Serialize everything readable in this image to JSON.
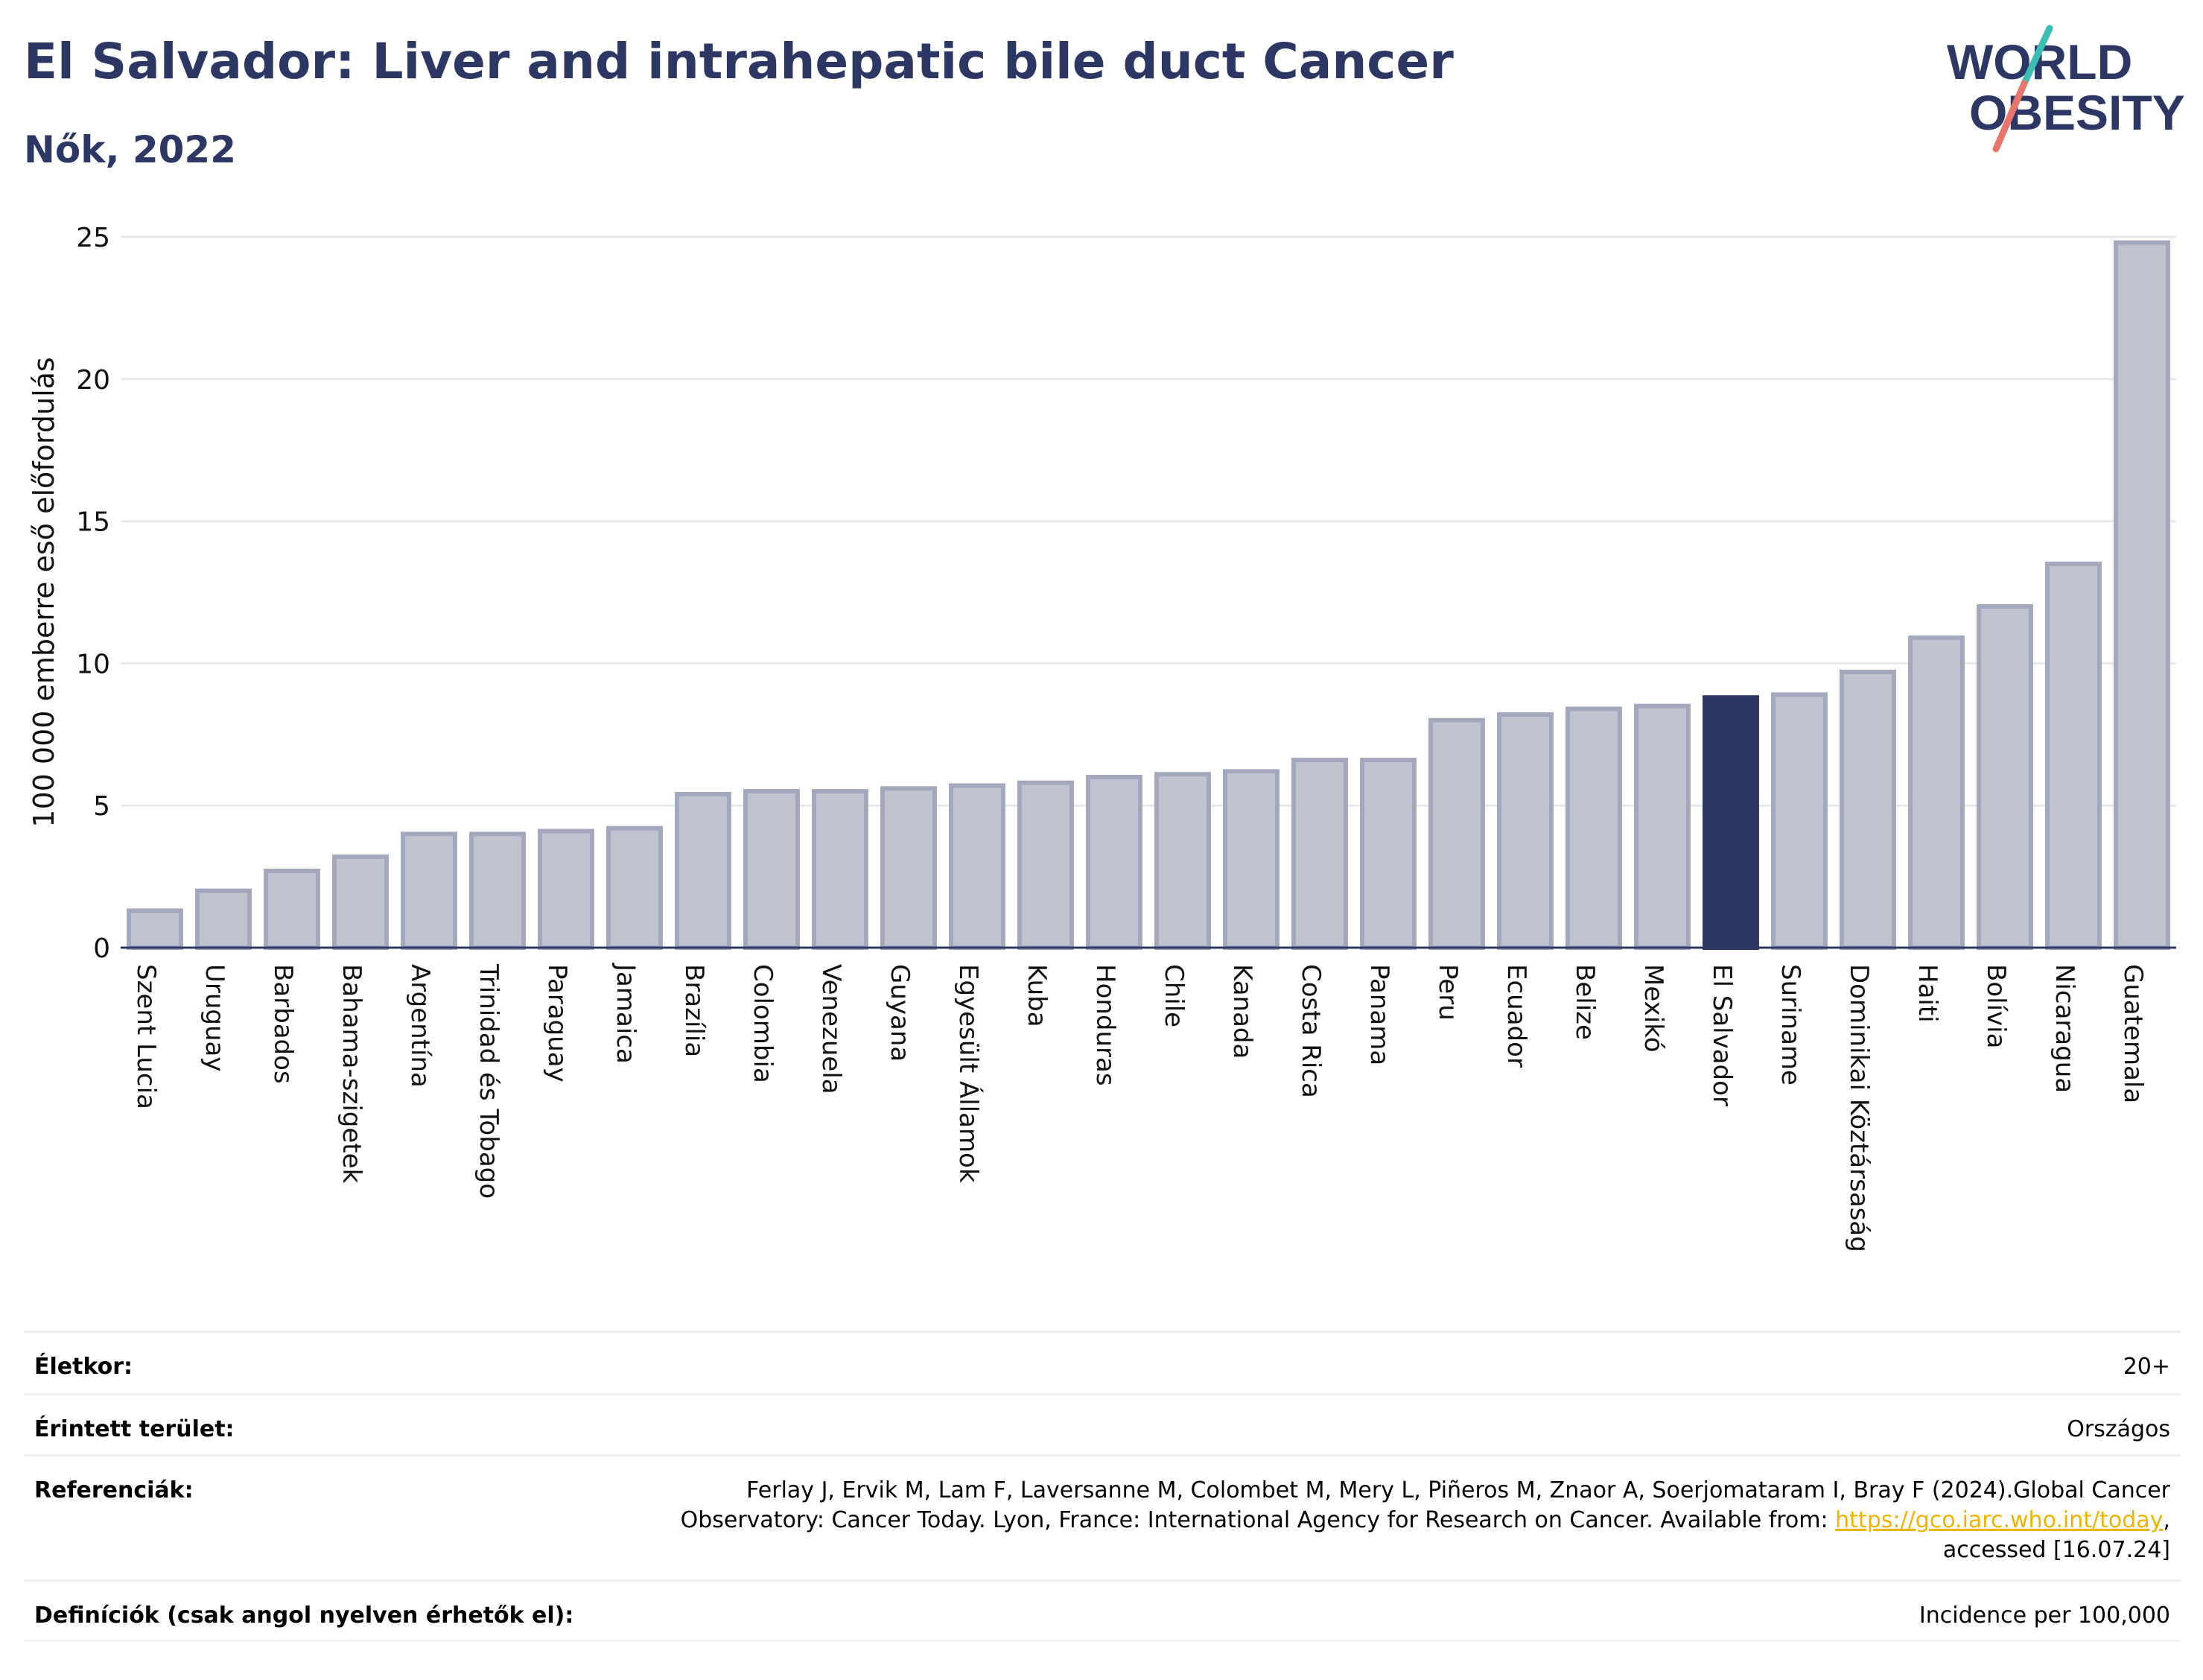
{
  "header": {
    "title": "El Salvador: Liver and intrahepatic bile duct Cancer",
    "subtitle": "Nők, 2022"
  },
  "logo": {
    "line1": "WORLD",
    "line2": "OBESITY",
    "colors": {
      "text": "#2c3764",
      "slash_top": "#3bbfb5",
      "slash_bottom": "#e8766a"
    }
  },
  "chart_data": {
    "type": "bar",
    "ylabel": "100 000 emberre eső előfordulás",
    "xlabel": "",
    "ylim": [
      0,
      25
    ],
    "yticks": [
      0,
      5,
      10,
      15,
      20,
      25
    ],
    "grid": true,
    "highlight": "El Salvador",
    "colors": {
      "bar": "#c0c3d0",
      "bar_edge": "#a4a8bc",
      "highlight": "#2c3764",
      "grid": "#e6e8ee",
      "axis": "#2c3764"
    },
    "categories": [
      "Szent Lucia",
      "Uruguay",
      "Barbados",
      "Bahama-szigetek",
      "Argentína",
      "Trinidad és Tobago",
      "Paraguay",
      "Jamaica",
      "Brazília",
      "Colombia",
      "Venezuela",
      "Guyana",
      "Egyesült Államok",
      "Kuba",
      "Honduras",
      "Chile",
      "Kanada",
      "Costa Rica",
      "Panama",
      "Peru",
      "Ecuador",
      "Belize",
      "Mexikó",
      "El Salvador",
      "Suriname",
      "Dominikai Köztársaság",
      "Haiti",
      "Bolívia",
      "Nicaragua",
      "Guatemala"
    ],
    "values": [
      1.3,
      2.0,
      2.7,
      3.2,
      4.0,
      4.0,
      4.1,
      4.2,
      5.4,
      5.5,
      5.5,
      5.6,
      5.7,
      5.8,
      6.0,
      6.1,
      6.2,
      6.6,
      6.6,
      8.0,
      8.2,
      8.4,
      8.5,
      8.8,
      8.9,
      9.7,
      10.9,
      12.0,
      13.5,
      24.8
    ]
  },
  "meta": {
    "age_label": "Életkor:",
    "age_value": "20+",
    "area_label": "Érintett terület:",
    "area_value": "Országos",
    "ref_label": "Referenciák:",
    "ref_text_1": "Ferlay J, Ervik M, Lam F, Laversanne M, Colombet M, Mery L, Piñeros M, Znaor A, Soerjomataram I, Bray F (2024).Global Cancer",
    "ref_text_2": "Observatory: Cancer Today. Lyon, France: International Agency for Research on Cancer. Available from: ",
    "ref_link": "https://gco.iarc.who.int/today",
    "ref_text_3": ",",
    "ref_text_4": "accessed [16.07.24]",
    "def_label": "Definíciók (csak angol nyelven érhetők el):",
    "def_value": "Incidence per 100,000"
  }
}
